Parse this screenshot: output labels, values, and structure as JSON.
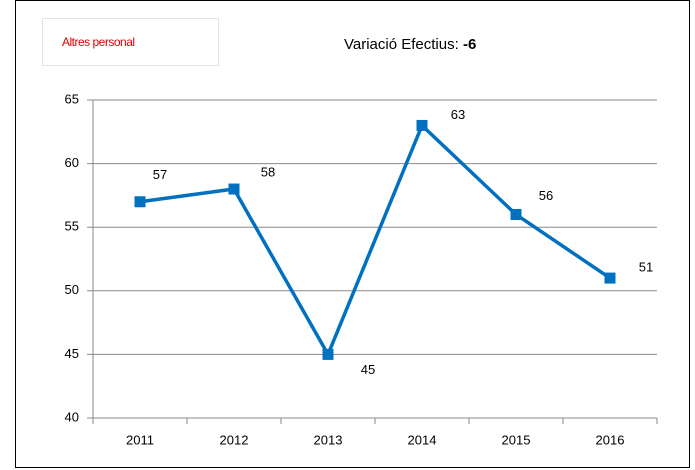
{
  "chart_data": {
    "type": "line",
    "label": "Altres personal",
    "title": "Variació Efectius:",
    "variation": -6,
    "categories": [
      "2011",
      "2012",
      "2013",
      "2014",
      "2015",
      "2016"
    ],
    "series": [
      {
        "name": "Altres personal",
        "color": "#0070c0",
        "values": [
          57,
          58,
          45,
          63,
          56,
          51
        ]
      }
    ],
    "ylim": [
      40,
      65
    ],
    "yticks": [
      40,
      45,
      50,
      55,
      60,
      65
    ],
    "grid": true
  }
}
